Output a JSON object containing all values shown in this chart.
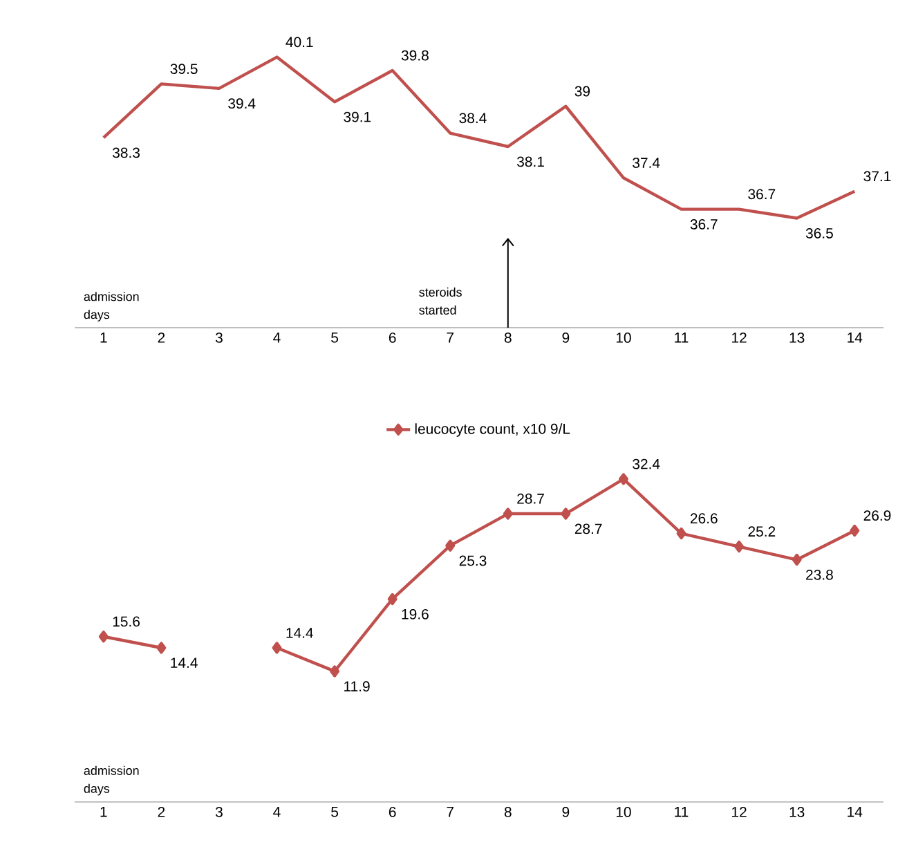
{
  "chart_data": [
    {
      "type": "line",
      "categories": [
        "1",
        "2",
        "3",
        "4",
        "5",
        "6",
        "7",
        "8",
        "9",
        "10",
        "11",
        "12",
        "13",
        "14"
      ],
      "values": [
        38.3,
        39.5,
        39.4,
        40.1,
        39.1,
        39.8,
        38.4,
        38.1,
        39,
        37.4,
        36.7,
        36.7,
        36.5,
        37.1
      ],
      "color": "#c0504d",
      "data_labels": true,
      "tick_labels": "x",
      "xlabel": "admission days",
      "annotations": [
        "steroids started"
      ]
    },
    {
      "type": "line",
      "categories": [
        "1",
        "2",
        "3",
        "4",
        "5",
        "6",
        "7",
        "8",
        "9",
        "10",
        "11",
        "12",
        "13",
        "14"
      ],
      "series": [
        {
          "name": "leucocyte count, x10 9/L",
          "color": "#c0504d",
          "values": [
            15.6,
            14.4,
            null,
            14.4,
            11.9,
            19.6,
            25.3,
            28.7,
            28.7,
            32.4,
            26.6,
            25.2,
            23.8,
            26.9
          ]
        }
      ],
      "data_labels": true,
      "tick_labels": "x",
      "xlabel": "admission days",
      "marker": "diamond",
      "legend": "top"
    }
  ]
}
